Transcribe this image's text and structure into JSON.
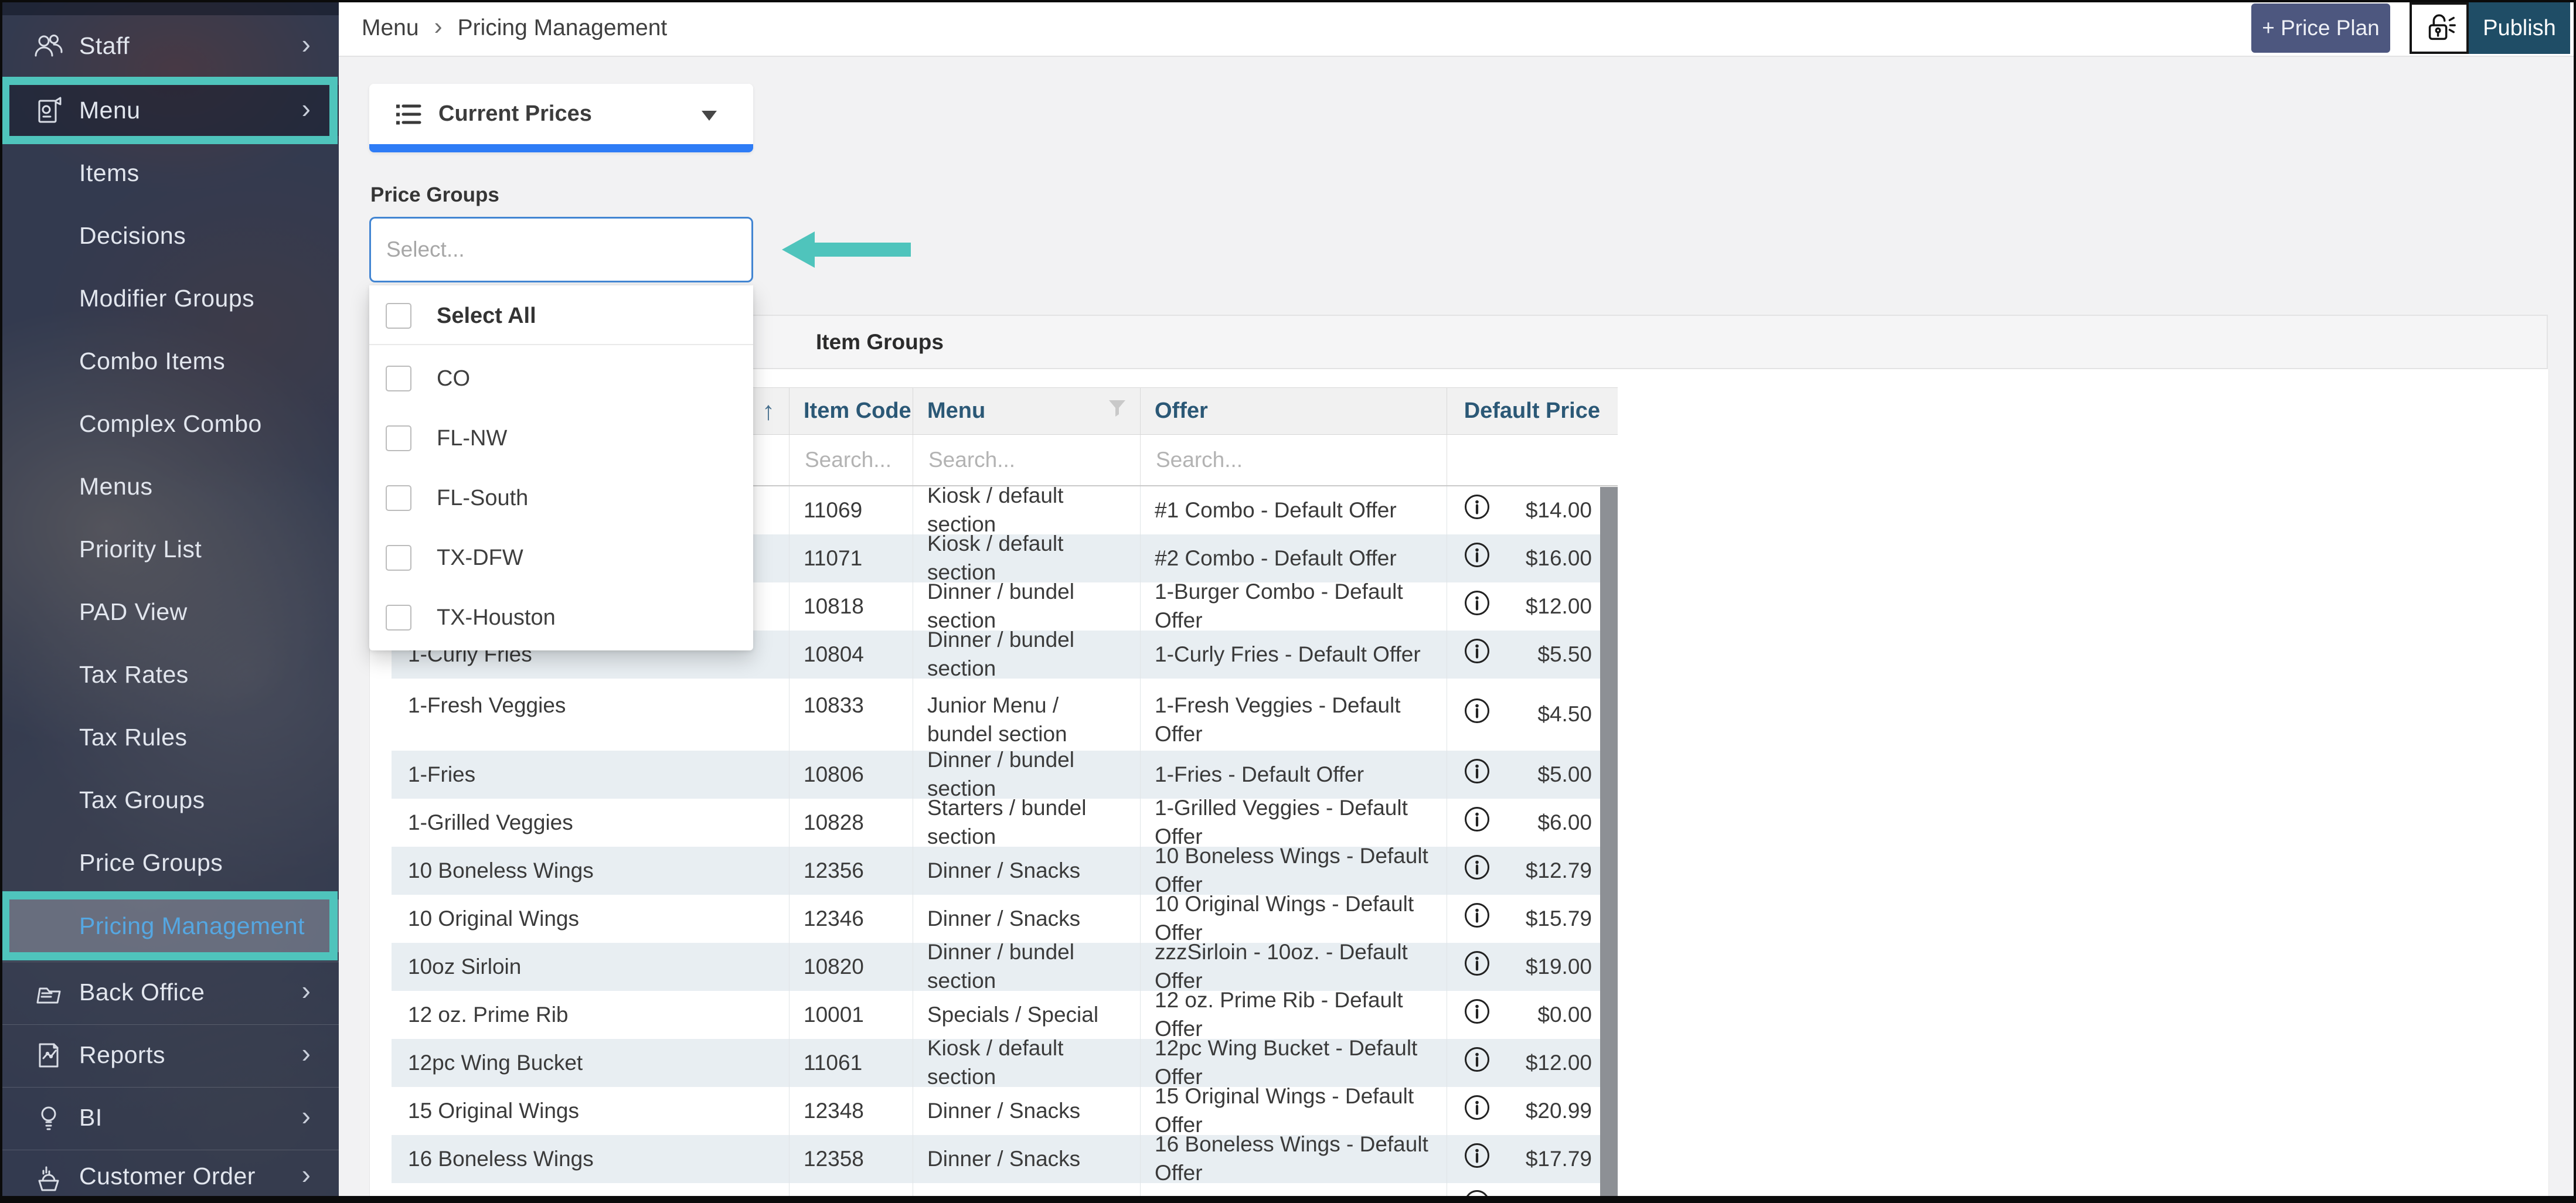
{
  "topbar": {
    "breadcrumb": {
      "items": [
        "Menu",
        "Pricing Management"
      ],
      "separator": "›"
    },
    "buttons": {
      "price_plan": "+ Price Plan",
      "publish": "Publish"
    },
    "lock_icon": "unlocked-padlock-alert"
  },
  "sidebar": {
    "items": [
      {
        "label": "Staff",
        "icon": "staff-people-icon",
        "type": "top",
        "chevron": true
      },
      {
        "label": "Menu",
        "icon": "menu-card-icon",
        "type": "top",
        "chevron": true,
        "highlighted": true,
        "annotated": true
      },
      {
        "label": "Items",
        "type": "sub"
      },
      {
        "label": "Decisions",
        "type": "sub"
      },
      {
        "label": "Modifier Groups",
        "type": "sub"
      },
      {
        "label": "Combo Items",
        "type": "sub"
      },
      {
        "label": "Complex Combo",
        "type": "sub"
      },
      {
        "label": "Menus",
        "type": "sub"
      },
      {
        "label": "Priority List",
        "type": "sub"
      },
      {
        "label": "PAD View",
        "type": "sub"
      },
      {
        "label": "Tax Rates",
        "type": "sub"
      },
      {
        "label": "Tax Rules",
        "type": "sub"
      },
      {
        "label": "Tax Groups",
        "type": "sub"
      },
      {
        "label": "Price Groups",
        "type": "sub"
      },
      {
        "label": "Pricing Management",
        "type": "sub",
        "active": true,
        "annotated": true
      },
      {
        "label": "Back Office",
        "icon": "back-office-folder-icon",
        "type": "top",
        "chevron": true,
        "divider": true
      },
      {
        "label": "Reports",
        "icon": "reports-chart-icon",
        "type": "top",
        "chevron": true,
        "divider": true
      },
      {
        "label": "BI",
        "icon": "bi-lightbulb-icon",
        "type": "top",
        "chevron": true,
        "divider": true
      },
      {
        "label": "Customer Order",
        "icon": "customer-order-basket-icon",
        "type": "top",
        "chevron": true,
        "divider": true
      }
    ]
  },
  "view_selector": {
    "label": "Current Prices",
    "icon": "list-icon"
  },
  "price_groups": {
    "label": "Price Groups",
    "placeholder": "Select...",
    "dropdown": {
      "select_all": "Select All",
      "options": [
        "CO",
        "FL-NW",
        "FL-South",
        "TX-DFW",
        "TX-Houston"
      ]
    }
  },
  "item_groups": {
    "title": "Item Groups",
    "sort_indicator": "↑",
    "search_placeholder": "Search...",
    "columns": [
      "Item Code",
      "Menu",
      "Offer",
      "Default Price"
    ],
    "rows": [
      {
        "name": "",
        "item_code": "11069",
        "menu": "Kiosk / default section",
        "offer": "#1 Combo - Default Offer",
        "default_price": "$14.00"
      },
      {
        "name": "",
        "item_code": "11071",
        "menu": "Kiosk / default section",
        "offer": "#2 Combo - Default Offer",
        "default_price": "$16.00"
      },
      {
        "name": "",
        "item_code": "10818",
        "menu": "Dinner / bundel section",
        "offer": "1-Burger Combo - Default Offer",
        "default_price": "$12.00"
      },
      {
        "name": "1-Curly Fries",
        "item_code": "10804",
        "menu": "Dinner / bundel section",
        "offer": "1-Curly Fries - Default Offer",
        "default_price": "$5.50"
      },
      {
        "name": "1-Fresh Veggies",
        "item_code": "10833",
        "menu": "Junior Menu / bundel section",
        "offer": "1-Fresh Veggies - Default Offer",
        "default_price": "$4.50"
      },
      {
        "name": "1-Fries",
        "item_code": "10806",
        "menu": "Dinner / bundel section",
        "offer": "1-Fries - Default Offer",
        "default_price": "$5.00"
      },
      {
        "name": "1-Grilled Veggies",
        "item_code": "10828",
        "menu": "Starters / bundel section",
        "offer": "1-Grilled Veggies - Default Offer",
        "default_price": "$6.00"
      },
      {
        "name": "10 Boneless Wings",
        "item_code": "12356",
        "menu": "Dinner / Snacks",
        "offer": "10 Boneless Wings - Default Offer",
        "default_price": "$12.79"
      },
      {
        "name": "10 Original Wings",
        "item_code": "12346",
        "menu": "Dinner / Snacks",
        "offer": "10 Original Wings - Default Offer",
        "default_price": "$15.79"
      },
      {
        "name": "10oz Sirloin",
        "item_code": "10820",
        "menu": "Dinner / bundel section",
        "offer": "zzzSirloin - 10oz. - Default Offer",
        "default_price": "$19.00"
      },
      {
        "name": "12 oz. Prime Rib",
        "item_code": "10001",
        "menu": "Specials / Special",
        "offer": "12 oz. Prime Rib - Default Offer",
        "default_price": "$0.00"
      },
      {
        "name": "12pc Wing Bucket",
        "item_code": "11061",
        "menu": "Kiosk / default section",
        "offer": "12pc Wing Bucket - Default Offer",
        "default_price": "$12.00"
      },
      {
        "name": "15 Original Wings",
        "item_code": "12348",
        "menu": "Dinner / Snacks",
        "offer": "15 Original Wings - Default Offer",
        "default_price": "$20.99"
      },
      {
        "name": "16 Boneless Wings",
        "item_code": "12358",
        "menu": "Dinner / Snacks",
        "offer": "16 Boneless Wings - Default Offer",
        "default_price": "$17.79"
      }
    ]
  },
  "colors": {
    "annotation_teal": "#4fc4bc",
    "active_link_blue": "#55a7e2",
    "selector_underline_blue": "#2e7cf6",
    "select_border_blue": "#4285d2",
    "table_header_text": "#2b5876",
    "price_plan_button": "#4d577f",
    "publish_button": "#1f4d66",
    "row_alt_background": "#e8eef2"
  }
}
